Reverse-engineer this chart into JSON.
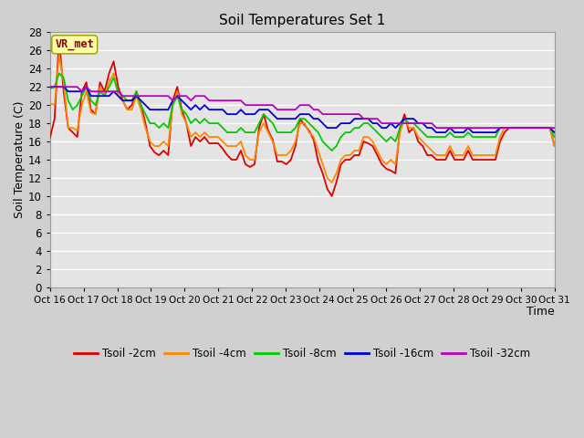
{
  "title": "Soil Temperatures Set 1",
  "xlabel": "Time",
  "ylabel": "Soil Temperature (C)",
  "ylim": [
    0,
    28
  ],
  "yticks": [
    0,
    2,
    4,
    6,
    8,
    10,
    12,
    14,
    16,
    18,
    20,
    22,
    24,
    26,
    28
  ],
  "xtick_labels": [
    "Oct 16",
    "Oct 17",
    "Oct 18",
    "Oct 19",
    "Oct 20",
    "Oct 21",
    "Oct 22",
    "Oct 23",
    "Oct 24",
    "Oct 25",
    "Oct 26",
    "Oct 27",
    "Oct 28",
    "Oct 29",
    "Oct 30",
    "Oct 31"
  ],
  "background_color": "#d8d8d8",
  "plot_bg_color": "#e0e0e0",
  "grid_color": "#f0f0f0",
  "legend_label": "VR_met",
  "legend_label_color": "#8B0000",
  "legend_box_facecolor": "#ffffaa",
  "legend_box_edgecolor": "#999900",
  "colors": {
    "Tsoil -2cm": "#dd0000",
    "Tsoil -4cm": "#ff8800",
    "Tsoil -8cm": "#00cc00",
    "Tsoil -16cm": "#0000dd",
    "Tsoil -32cm": "#bb00bb"
  },
  "t2cm": [
    16.4,
    18.5,
    27.2,
    21.5,
    17.5,
    17.0,
    16.5,
    21.5,
    22.5,
    19.5,
    19.0,
    22.5,
    21.5,
    23.5,
    24.8,
    22.0,
    20.5,
    19.5,
    20.0,
    21.5,
    20.0,
    18.0,
    15.5,
    14.8,
    14.5,
    15.0,
    14.5,
    20.5,
    22.0,
    19.5,
    18.0,
    15.5,
    16.5,
    16.0,
    16.5,
    15.8,
    15.8,
    15.8,
    15.2,
    14.5,
    14.0,
    14.0,
    15.0,
    13.5,
    13.2,
    13.5,
    17.5,
    19.0,
    17.2,
    16.2,
    13.8,
    13.8,
    13.5,
    14.0,
    15.5,
    18.5,
    17.8,
    17.2,
    16.2,
    13.8,
    12.5,
    10.8,
    10.0,
    11.5,
    13.5,
    14.0,
    14.0,
    14.5,
    14.5,
    16.0,
    15.8,
    15.5,
    14.5,
    13.5,
    13.0,
    12.8,
    12.5,
    17.5,
    19.0,
    17.0,
    17.5,
    16.0,
    15.5,
    14.5,
    14.5,
    14.0,
    14.0,
    14.0,
    15.0,
    14.0,
    14.0,
    14.0,
    15.0,
    14.0,
    14.0,
    14.0,
    14.0,
    14.0,
    14.0,
    16.0,
    17.0,
    17.5,
    17.5,
    17.5,
    17.5,
    17.5,
    17.5,
    17.5,
    17.5,
    17.5,
    17.5,
    15.5
  ],
  "t4cm": [
    20.2,
    20.0,
    25.5,
    22.5,
    17.5,
    17.5,
    17.2,
    20.0,
    21.5,
    19.2,
    19.0,
    22.0,
    21.2,
    22.5,
    23.5,
    21.0,
    20.5,
    19.5,
    19.5,
    21.0,
    19.5,
    17.5,
    16.0,
    15.5,
    15.5,
    16.0,
    15.5,
    20.0,
    21.5,
    19.0,
    18.0,
    16.5,
    17.0,
    16.5,
    17.0,
    16.5,
    16.5,
    16.5,
    16.0,
    15.5,
    15.5,
    15.5,
    16.0,
    14.5,
    14.0,
    14.0,
    17.0,
    18.0,
    17.0,
    16.0,
    14.5,
    14.5,
    14.5,
    15.0,
    16.0,
    18.0,
    18.0,
    17.0,
    16.5,
    15.0,
    13.5,
    12.0,
    11.5,
    12.5,
    14.0,
    14.5,
    14.5,
    15.0,
    15.0,
    16.5,
    16.5,
    16.0,
    15.0,
    14.0,
    13.5,
    14.0,
    13.5,
    17.0,
    18.5,
    17.5,
    17.5,
    16.5,
    16.0,
    15.5,
    15.0,
    14.5,
    14.5,
    14.5,
    15.5,
    14.5,
    14.5,
    14.5,
    15.5,
    14.5,
    14.5,
    14.5,
    14.5,
    14.5,
    14.5,
    16.5,
    17.5,
    17.5,
    17.5,
    17.5,
    17.5,
    17.5,
    17.5,
    17.5,
    17.5,
    17.5,
    17.5,
    15.5
  ],
  "t8cm": [
    21.8,
    22.0,
    23.5,
    23.0,
    20.5,
    19.5,
    20.0,
    21.0,
    22.0,
    20.5,
    20.0,
    21.5,
    21.0,
    22.0,
    23.0,
    21.5,
    21.0,
    20.5,
    20.5,
    21.5,
    20.0,
    19.0,
    18.0,
    18.0,
    17.5,
    18.0,
    17.5,
    20.0,
    21.0,
    19.5,
    19.0,
    18.0,
    18.5,
    18.0,
    18.5,
    18.0,
    18.0,
    18.0,
    17.5,
    17.0,
    17.0,
    17.0,
    17.5,
    17.0,
    17.0,
    17.0,
    18.0,
    19.0,
    18.5,
    18.0,
    17.0,
    17.0,
    17.0,
    17.0,
    17.5,
    18.5,
    18.5,
    18.0,
    17.5,
    17.0,
    16.0,
    15.5,
    15.0,
    15.5,
    16.5,
    17.0,
    17.0,
    17.5,
    17.5,
    18.0,
    18.0,
    17.5,
    17.0,
    16.5,
    16.0,
    16.5,
    16.0,
    17.5,
    18.5,
    18.0,
    18.0,
    17.5,
    17.0,
    16.5,
    16.5,
    16.5,
    16.5,
    16.5,
    17.0,
    16.5,
    16.5,
    16.5,
    17.0,
    16.5,
    16.5,
    16.5,
    16.5,
    16.5,
    16.5,
    17.5,
    17.5,
    17.5,
    17.5,
    17.5,
    17.5,
    17.5,
    17.5,
    17.5,
    17.5,
    17.5,
    17.5,
    16.5
  ],
  "t16cm": [
    22.0,
    22.0,
    22.0,
    22.0,
    21.5,
    21.5,
    21.5,
    21.5,
    22.0,
    21.0,
    21.0,
    21.0,
    21.0,
    21.0,
    21.5,
    21.0,
    20.5,
    20.5,
    20.5,
    21.0,
    20.5,
    20.0,
    19.5,
    19.5,
    19.5,
    19.5,
    19.5,
    20.5,
    21.0,
    20.5,
    20.0,
    19.5,
    20.0,
    19.5,
    20.0,
    19.5,
    19.5,
    19.5,
    19.5,
    19.0,
    19.0,
    19.0,
    19.5,
    19.0,
    19.0,
    19.0,
    19.5,
    19.5,
    19.5,
    19.0,
    18.5,
    18.5,
    18.5,
    18.5,
    18.5,
    19.0,
    19.0,
    19.0,
    18.5,
    18.5,
    18.0,
    17.5,
    17.5,
    17.5,
    18.0,
    18.0,
    18.0,
    18.5,
    18.5,
    18.5,
    18.5,
    18.0,
    18.0,
    17.5,
    17.5,
    18.0,
    17.5,
    18.0,
    18.5,
    18.5,
    18.5,
    18.0,
    18.0,
    17.5,
    17.5,
    17.0,
    17.0,
    17.0,
    17.5,
    17.0,
    17.0,
    17.0,
    17.5,
    17.0,
    17.0,
    17.0,
    17.0,
    17.0,
    17.0,
    17.5,
    17.5,
    17.5,
    17.5,
    17.5,
    17.5,
    17.5,
    17.5,
    17.5,
    17.5,
    17.5,
    17.5,
    17.0
  ],
  "t32cm": [
    22.0,
    22.0,
    22.0,
    22.0,
    22.0,
    22.0,
    22.0,
    21.5,
    22.0,
    21.5,
    21.5,
    21.5,
    21.5,
    21.5,
    21.5,
    21.5,
    21.0,
    21.0,
    21.0,
    21.0,
    21.0,
    21.0,
    21.0,
    21.0,
    21.0,
    21.0,
    21.0,
    20.5,
    21.0,
    21.0,
    21.0,
    20.5,
    21.0,
    21.0,
    21.0,
    20.5,
    20.5,
    20.5,
    20.5,
    20.5,
    20.5,
    20.5,
    20.5,
    20.0,
    20.0,
    20.0,
    20.0,
    20.0,
    20.0,
    20.0,
    19.5,
    19.5,
    19.5,
    19.5,
    19.5,
    20.0,
    20.0,
    20.0,
    19.5,
    19.5,
    19.0,
    19.0,
    19.0,
    19.0,
    19.0,
    19.0,
    19.0,
    19.0,
    19.0,
    18.5,
    18.5,
    18.5,
    18.5,
    18.0,
    18.0,
    18.0,
    18.0,
    18.0,
    18.0,
    18.0,
    18.0,
    18.0,
    18.0,
    18.0,
    18.0,
    17.5,
    17.5,
    17.5,
    17.5,
    17.5,
    17.5,
    17.5,
    17.5,
    17.5,
    17.5,
    17.5,
    17.5,
    17.5,
    17.5,
    17.5,
    17.5,
    17.5,
    17.5,
    17.5,
    17.5,
    17.5,
    17.5,
    17.5,
    17.5,
    17.5,
    17.5,
    17.5
  ]
}
